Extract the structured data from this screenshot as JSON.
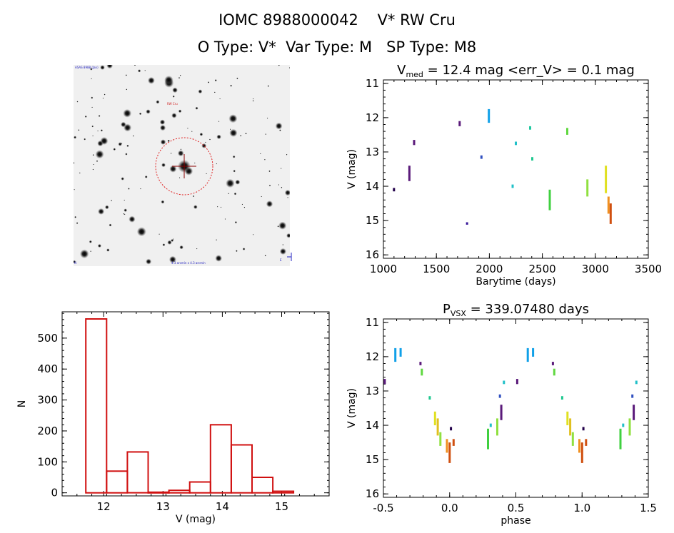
{
  "header": {
    "title": "IOMC 8988000042    V* RW Cru",
    "subtitle": "O Type: V*  Var Type: M   SP Type: M8"
  },
  "finder": {
    "label_top_left": "ASAS 8988 (Jan)",
    "label_target": "RW Cru",
    "label_bottom_center": "4.3 arcmin x 4.3 arcmin",
    "label_bottom_left": "N",
    "label_bottom_right": "E"
  },
  "chart_data": [
    {
      "type": "scatter",
      "id": "light-curve",
      "title_main": "V",
      "title_sub": "med",
      "title_rest": " = 12.4 mag <err_V> = 0.1 mag",
      "xlabel": "Barytime (days)",
      "ylabel": "V (mag)",
      "xlim": [
        1000,
        3500
      ],
      "ylim": [
        16.1,
        10.9
      ],
      "xticks": [
        1000,
        1500,
        2000,
        2500,
        3000,
        3500
      ],
      "yticks": [
        11,
        12,
        13,
        14,
        15,
        16
      ],
      "points": [
        {
          "x": 1100,
          "y": [
            14.05,
            14.15
          ],
          "color": "#22004a"
        },
        {
          "x": 1245,
          "y": [
            13.4,
            13.85
          ],
          "color": "#5a1a7a"
        },
        {
          "x": 1290,
          "y": [
            12.65,
            12.8
          ],
          "color": "#5a1a7a"
        },
        {
          "x": 1720,
          "y": [
            12.1,
            12.25
          ],
          "color": "#5a1a7a"
        },
        {
          "x": 1790,
          "y": [
            15.05,
            15.12
          ],
          "color": "#3a1a9a"
        },
        {
          "x": 1925,
          "y": [
            13.1,
            13.2
          ],
          "color": "#3050c0"
        },
        {
          "x": 1995,
          "y": [
            11.75,
            12.15
          ],
          "color": "#10a0e8"
        },
        {
          "x": 2220,
          "y": [
            13.95,
            14.05
          ],
          "color": "#20c0c8"
        },
        {
          "x": 2250,
          "y": [
            12.7,
            12.8
          ],
          "color": "#20c0c8"
        },
        {
          "x": 2385,
          "y": [
            12.25,
            12.35
          ],
          "color": "#20c8a0"
        },
        {
          "x": 2405,
          "y": [
            13.15,
            13.25
          ],
          "color": "#20c890"
        },
        {
          "x": 2570,
          "y": [
            14.1,
            14.7
          ],
          "color": "#40d040"
        },
        {
          "x": 2735,
          "y": [
            12.3,
            12.5
          ],
          "color": "#60d840"
        },
        {
          "x": 2925,
          "y": [
            13.8,
            14.3
          ],
          "color": "#90e040"
        },
        {
          "x": 3100,
          "y": [
            13.4,
            14.2
          ],
          "color": "#e0e020"
        },
        {
          "x": 3125,
          "y": [
            14.3,
            14.8
          ],
          "color": "#f09020"
        },
        {
          "x": 3145,
          "y": [
            14.5,
            15.1
          ],
          "color": "#d05010"
        }
      ]
    },
    {
      "type": "bar",
      "id": "histogram",
      "xlabel": "V (mag)",
      "ylabel": "N",
      "xlim": [
        11.3,
        15.8
      ],
      "ylim": [
        -10,
        585
      ],
      "xticks": [
        12,
        13,
        14,
        15
      ],
      "yticks": [
        0,
        100,
        200,
        300,
        400,
        500
      ],
      "bin_edges": [
        11.7,
        12.05,
        12.4,
        12.75,
        13.1,
        13.45,
        13.8,
        14.15,
        14.5,
        14.85,
        15.2
      ],
      "values": [
        562,
        70,
        132,
        2,
        8,
        35,
        220,
        155,
        50,
        5
      ],
      "bar_color": "#d01010"
    },
    {
      "type": "scatter",
      "id": "phased-curve",
      "title_main": "P",
      "title_sub": "VSX",
      "title_rest": " = 339.07480 days",
      "xlabel": "phase",
      "ylabel": "V (mag)",
      "xlim": [
        -0.5,
        1.5
      ],
      "ylim": [
        16.1,
        10.9
      ],
      "xticks": [
        -0.5,
        0.0,
        0.5,
        1.0,
        1.5
      ],
      "yticks": [
        11,
        12,
        13,
        14,
        15,
        16
      ],
      "points": [
        {
          "x": -0.41,
          "y": [
            11.75,
            12.15
          ],
          "color": "#10a0e8"
        },
        {
          "x": -0.37,
          "y": [
            11.75,
            12.0
          ],
          "color": "#10a0e8"
        },
        {
          "x": -0.49,
          "y": [
            12.65,
            12.8
          ],
          "color": "#5a1a7a"
        },
        {
          "x": -0.22,
          "y": [
            12.15,
            12.25
          ],
          "color": "#5a1a7a"
        },
        {
          "x": -0.21,
          "y": [
            12.35,
            12.55
          ],
          "color": "#60d840"
        },
        {
          "x": -0.15,
          "y": [
            13.15,
            13.25
          ],
          "color": "#20c890"
        },
        {
          "x": -0.11,
          "y": [
            13.6,
            14.0
          ],
          "color": "#e0e020"
        },
        {
          "x": -0.09,
          "y": [
            13.8,
            14.3
          ],
          "color": "#e0c020"
        },
        {
          "x": -0.07,
          "y": [
            14.2,
            14.6
          ],
          "color": "#90e040"
        },
        {
          "x": -0.02,
          "y": [
            14.4,
            14.8
          ],
          "color": "#f09020"
        },
        {
          "x": 0.0,
          "y": [
            14.5,
            15.1
          ],
          "color": "#d05010"
        },
        {
          "x": 0.01,
          "y": [
            14.05,
            14.15
          ],
          "color": "#22004a"
        },
        {
          "x": 0.03,
          "y": [
            14.4,
            14.6
          ],
          "color": "#d05010"
        },
        {
          "x": 0.29,
          "y": [
            14.1,
            14.7
          ],
          "color": "#40d040"
        },
        {
          "x": 0.31,
          "y": [
            13.95,
            14.05
          ],
          "color": "#20c0c8"
        },
        {
          "x": 0.36,
          "y": [
            13.8,
            14.3
          ],
          "color": "#90e040"
        },
        {
          "x": 0.39,
          "y": [
            13.4,
            13.85
          ],
          "color": "#5a1a7a"
        },
        {
          "x": 0.38,
          "y": [
            13.1,
            13.2
          ],
          "color": "#3050c0"
        },
        {
          "x": 0.41,
          "y": [
            12.7,
            12.8
          ],
          "color": "#20c0c8"
        },
        {
          "x": 0.59,
          "y": [
            11.75,
            12.15
          ],
          "color": "#10a0e8"
        },
        {
          "x": 0.63,
          "y": [
            11.75,
            12.0
          ],
          "color": "#10a0e8"
        },
        {
          "x": 0.51,
          "y": [
            12.65,
            12.8
          ],
          "color": "#5a1a7a"
        },
        {
          "x": 0.78,
          "y": [
            12.15,
            12.25
          ],
          "color": "#5a1a7a"
        },
        {
          "x": 0.79,
          "y": [
            12.35,
            12.55
          ],
          "color": "#60d840"
        },
        {
          "x": 0.85,
          "y": [
            13.15,
            13.25
          ],
          "color": "#20c890"
        },
        {
          "x": 0.89,
          "y": [
            13.6,
            14.0
          ],
          "color": "#e0e020"
        },
        {
          "x": 0.91,
          "y": [
            13.8,
            14.3
          ],
          "color": "#e0c020"
        },
        {
          "x": 0.93,
          "y": [
            14.2,
            14.6
          ],
          "color": "#90e040"
        },
        {
          "x": 0.98,
          "y": [
            14.4,
            14.8
          ],
          "color": "#f09020"
        },
        {
          "x": 1.0,
          "y": [
            14.5,
            15.1
          ],
          "color": "#d05010"
        },
        {
          "x": 1.01,
          "y": [
            14.05,
            14.15
          ],
          "color": "#22004a"
        },
        {
          "x": 1.03,
          "y": [
            14.4,
            14.6
          ],
          "color": "#d05010"
        },
        {
          "x": 1.29,
          "y": [
            14.1,
            14.7
          ],
          "color": "#40d040"
        },
        {
          "x": 1.31,
          "y": [
            13.95,
            14.05
          ],
          "color": "#20c0c8"
        },
        {
          "x": 1.36,
          "y": [
            13.8,
            14.3
          ],
          "color": "#90e040"
        },
        {
          "x": 1.39,
          "y": [
            13.4,
            13.85
          ],
          "color": "#5a1a7a"
        },
        {
          "x": 1.38,
          "y": [
            13.1,
            13.2
          ],
          "color": "#3050c0"
        },
        {
          "x": 1.41,
          "y": [
            12.7,
            12.8
          ],
          "color": "#20c0c8"
        }
      ]
    }
  ]
}
